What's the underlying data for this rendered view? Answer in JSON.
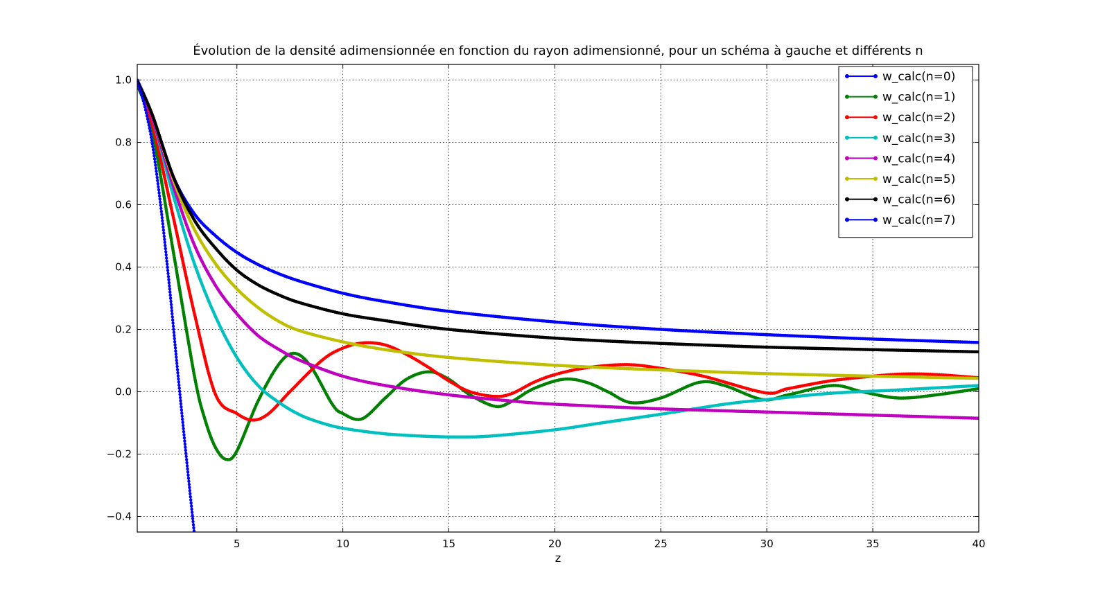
{
  "chart_data": {
    "type": "line",
    "title": "Évolution de la densité adimensionnée en fonction du rayon adimensionné, pour un schéma à gauche et différents n",
    "xlabel": "z",
    "ylabel": "",
    "xlim": [
      0.3,
      40
    ],
    "ylim": [
      -0.45,
      1.05
    ],
    "xticks": [
      5,
      10,
      15,
      20,
      25,
      30,
      35,
      40
    ],
    "yticks": [
      -0.4,
      -0.2,
      0.0,
      0.2,
      0.4,
      0.6,
      0.8,
      1.0
    ],
    "xtick_labels": [
      "5",
      "10",
      "15",
      "20",
      "25",
      "30",
      "35",
      "40"
    ],
    "ytick_labels": [
      "−0.4",
      "−0.2",
      "0.0",
      "0.2",
      "0.4",
      "0.6",
      "0.8",
      "1.0"
    ],
    "grid": true,
    "legend_position": "top-right",
    "series": [
      {
        "name": "w_calc(n=0)",
        "color": "#0000ff",
        "x": [
          0.3,
          1,
          2,
          3,
          4,
          5,
          6,
          7,
          8,
          10,
          12,
          15,
          20,
          25,
          30,
          35,
          40
        ],
        "y": [
          1.0,
          0.89,
          0.69,
          0.57,
          0.5,
          0.447,
          0.408,
          0.378,
          0.354,
          0.316,
          0.289,
          0.258,
          0.224,
          0.2,
          0.183,
          0.169,
          0.158
        ]
      },
      {
        "name": "w_calc(n=1)",
        "color": "#008000",
        "x": [
          0.3,
          1,
          2,
          3,
          3.5,
          4,
          4.5,
          5,
          6,
          7,
          7.73,
          8.5,
          9.5,
          10,
          10.9,
          12,
          13,
          14.07,
          15,
          16,
          17.2,
          18,
          19,
          20.4,
          21.5,
          22.5,
          23.6,
          25,
          26.8,
          28,
          29.8,
          31,
          33.1,
          34.5,
          36.2,
          38,
          40
        ],
        "y": [
          0.985,
          0.84,
          0.45,
          0.05,
          -0.09,
          -0.18,
          -0.217,
          -0.19,
          -0.03,
          0.09,
          0.123,
          0.08,
          -0.04,
          -0.07,
          -0.087,
          -0.02,
          0.04,
          0.064,
          0.04,
          -0.01,
          -0.047,
          -0.03,
          0.01,
          0.04,
          0.03,
          0.0,
          -0.035,
          -0.02,
          0.03,
          0.02,
          -0.025,
          -0.01,
          0.02,
          0.0,
          -0.02,
          -0.01,
          0.01
        ]
      },
      {
        "name": "w_calc(n=2)",
        "color": "#ff0000",
        "x": [
          0.3,
          1,
          2,
          3,
          4,
          5,
          5.76,
          6.5,
          7.5,
          9,
          10,
          11,
          12,
          13,
          14,
          15,
          16,
          17.2,
          18,
          19,
          20,
          21.5,
          23.4,
          25,
          27,
          29.9,
          31,
          33,
          35,
          36.5,
          38,
          40
        ],
        "y": [
          0.99,
          0.86,
          0.56,
          0.25,
          -0.01,
          -0.07,
          -0.091,
          -0.07,
          0.0,
          0.1,
          0.14,
          0.157,
          0.15,
          0.12,
          0.08,
          0.035,
          0.0,
          -0.015,
          -0.005,
          0.03,
          0.055,
          0.077,
          0.087,
          0.075,
          0.05,
          -0.003,
          0.01,
          0.035,
          0.05,
          0.057,
          0.055,
          0.045
        ]
      },
      {
        "name": "w_calc(n=3)",
        "color": "#00bfbf",
        "x": [
          0.3,
          1,
          2,
          3,
          4,
          5,
          6,
          7,
          8,
          9,
          10,
          12,
          14,
          15.5,
          17,
          20,
          22,
          25,
          28,
          30,
          33,
          36,
          40
        ],
        "y": [
          0.99,
          0.88,
          0.63,
          0.41,
          0.24,
          0.11,
          0.02,
          -0.035,
          -0.075,
          -0.1,
          -0.117,
          -0.135,
          -0.143,
          -0.145,
          -0.142,
          -0.122,
          -0.102,
          -0.072,
          -0.04,
          -0.025,
          -0.005,
          0.005,
          0.02
        ]
      },
      {
        "name": "w_calc(n=4)",
        "color": "#bf00bf",
        "x": [
          0.3,
          1,
          2,
          3,
          4,
          5,
          6,
          7,
          8,
          10,
          12,
          15,
          18,
          20,
          25,
          30,
          35,
          40
        ],
        "y": [
          0.99,
          0.88,
          0.66,
          0.47,
          0.34,
          0.25,
          0.18,
          0.135,
          0.1,
          0.05,
          0.02,
          -0.01,
          -0.03,
          -0.04,
          -0.055,
          -0.065,
          -0.075,
          -0.085
        ]
      },
      {
        "name": "w_calc(n=5)",
        "color": "#bfbf00",
        "x": [
          0.3,
          1,
          2,
          3,
          4,
          5,
          6,
          7,
          8,
          10,
          12,
          15,
          20,
          25,
          30,
          35,
          40
        ],
        "y": [
          0.99,
          0.89,
          0.68,
          0.52,
          0.41,
          0.33,
          0.27,
          0.225,
          0.195,
          0.16,
          0.135,
          0.11,
          0.085,
          0.07,
          0.058,
          0.05,
          0.043
        ]
      },
      {
        "name": "w_calc(n=6)",
        "color": "#000000",
        "x": [
          0.3,
          1,
          2,
          3,
          4,
          5,
          6,
          7,
          8,
          10,
          12,
          15,
          20,
          25,
          30,
          35,
          40
        ],
        "y": [
          0.995,
          0.89,
          0.69,
          0.55,
          0.46,
          0.39,
          0.343,
          0.31,
          0.285,
          0.25,
          0.228,
          0.2,
          0.172,
          0.155,
          0.143,
          0.135,
          0.128
        ]
      },
      {
        "name": "w_calc(n=7)",
        "color": "#0000ff",
        "x": [
          0.3,
          0.6,
          1,
          1.4,
          1.8,
          2.2,
          2.6,
          3.0
        ],
        "y": [
          0.99,
          0.93,
          0.8,
          0.6,
          0.35,
          0.07,
          -0.2,
          -0.46
        ]
      }
    ]
  }
}
